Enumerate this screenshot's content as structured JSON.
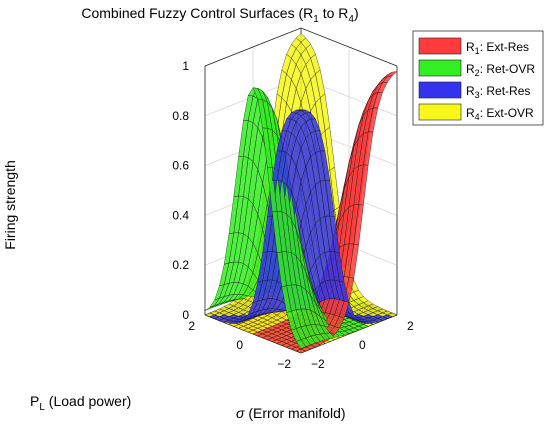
{
  "chart_data": {
    "type": "surface",
    "title_main": "Combined Fuzzy Control Surfaces (R",
    "title_sub1": "1",
    "title_mid": " to R",
    "title_sub2": "4",
    "title_end": ")",
    "zlabel": "Firing strength",
    "xlabel_symbol": "σ",
    "xlabel_text": " (Error manifold)",
    "ylabel_main": "P",
    "ylabel_sub": "L",
    "ylabel_text": " (Load power)",
    "x_range": [
      -2,
      2
    ],
    "y_range": [
      -2,
      2
    ],
    "z_range": [
      0,
      1
    ],
    "x_ticks": [
      {
        "v": -2,
        "label": "−2"
      },
      {
        "v": 0,
        "label": "0"
      },
      {
        "v": 2,
        "label": "2"
      }
    ],
    "y_ticks": [
      {
        "v": -2,
        "label": "−2"
      },
      {
        "v": 0,
        "label": "0"
      },
      {
        "v": 2,
        "label": "2"
      }
    ],
    "z_ticks": [
      {
        "v": 0,
        "label": "0"
      },
      {
        "v": 0.2,
        "label": "0.2"
      },
      {
        "v": 0.4,
        "label": "0.4"
      },
      {
        "v": 0.6,
        "label": "0.6"
      },
      {
        "v": 0.8,
        "label": "0.8"
      },
      {
        "v": 1,
        "label": "1"
      }
    ],
    "legend_position": "top-right",
    "grid": true,
    "series": [
      {
        "key": "R1",
        "sub": "1",
        "desc": ": Ext-Res",
        "color": "#ff3b3b",
        "x_peak": 2,
        "y_peak": -2
      },
      {
        "key": "R2",
        "sub": "2",
        "desc": ": Ret-OVR",
        "color": "#33ee22",
        "x_peak": -2,
        "y_peak": 0
      },
      {
        "key": "R3",
        "sub": "3",
        "desc": ": Ret-Res",
        "color": "#3333ee",
        "x_peak": -2,
        "y_peak": -2
      },
      {
        "key": "R4",
        "sub": "4",
        "desc": ": Ext-OVR",
        "color": "#f7f71a",
        "x_peak": 2,
        "y_peak": 2
      }
    ],
    "membership": {
      "kind": "sigmoid",
      "slope": 3.2,
      "center_offset": 0.6
    }
  }
}
